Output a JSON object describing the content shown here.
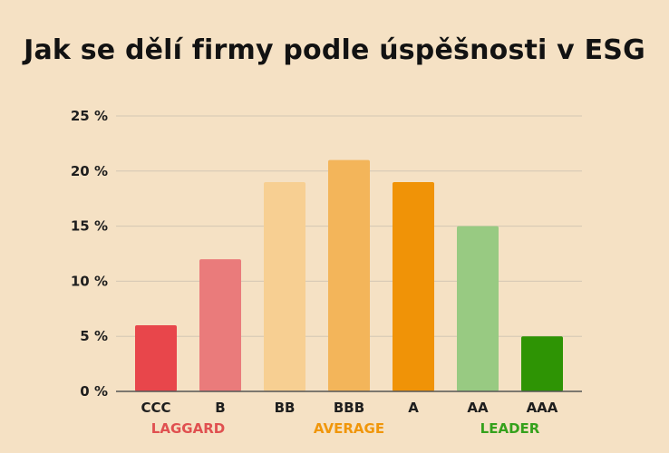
{
  "chart_data": {
    "type": "bar",
    "title": "Jak se dělí firmy podle úspěšnosti v ESG",
    "xlabel": "",
    "ylabel": "",
    "ylim": [
      0,
      25
    ],
    "yticks": [
      0,
      5,
      10,
      15,
      20,
      25
    ],
    "ytick_labels": [
      "0 %",
      "5 %",
      "10 %",
      "15 %",
      "20 %",
      "25 %"
    ],
    "categories": [
      "CCC",
      "B",
      "BB",
      "BBB",
      "A",
      "AA",
      "AAA"
    ],
    "values": [
      6,
      12,
      19,
      21,
      19,
      15,
      5
    ],
    "bar_colors": [
      "#e8464b",
      "#ea7b7b",
      "#f7cf92",
      "#f3b55a",
      "#f09307",
      "#98ca82",
      "#2e9404"
    ],
    "groups": [
      {
        "label": "LAGGARD",
        "categories": [
          "CCC",
          "B"
        ],
        "color": "#e05050"
      },
      {
        "label": "AVERAGE",
        "categories": [
          "BB",
          "BBB",
          "A"
        ],
        "color": "#f0960a"
      },
      {
        "label": "LEADER",
        "categories": [
          "AA",
          "AAA"
        ],
        "color": "#35a11c"
      }
    ],
    "grid": true,
    "legend": "none"
  }
}
